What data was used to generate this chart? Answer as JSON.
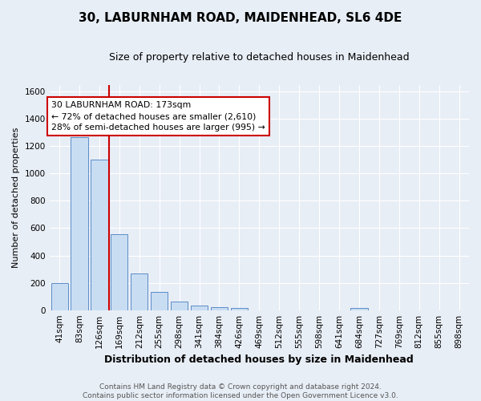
{
  "title": "30, LABURNHAM ROAD, MAIDENHEAD, SL6 4DE",
  "subtitle": "Size of property relative to detached houses in Maidenhead",
  "xlabel": "Distribution of detached houses by size in Maidenhead",
  "ylabel": "Number of detached properties",
  "footer_line1": "Contains HM Land Registry data © Crown copyright and database right 2024.",
  "footer_line2": "Contains public sector information licensed under the Open Government Licence v3.0.",
  "bar_labels": [
    "41sqm",
    "83sqm",
    "126sqm",
    "169sqm",
    "212sqm",
    "255sqm",
    "298sqm",
    "341sqm",
    "384sqm",
    "426sqm",
    "469sqm",
    "512sqm",
    "555sqm",
    "598sqm",
    "641sqm",
    "684sqm",
    "727sqm",
    "769sqm",
    "812sqm",
    "855sqm",
    "898sqm"
  ],
  "bar_values": [
    197,
    1265,
    1100,
    553,
    270,
    134,
    63,
    35,
    20,
    13,
    0,
    0,
    0,
    0,
    0,
    15,
    0,
    0,
    0,
    0,
    0
  ],
  "bar_color": "#c9ddf2",
  "bar_edge_color": "#5b8cc8",
  "annotation_title": "30 LABURNHAM ROAD: 173sqm",
  "annotation_line1": "← 72% of detached houses are smaller (2,610)",
  "annotation_line2": "28% of semi-detached houses are larger (995) →",
  "property_line_color": "#cc0000",
  "ylim": [
    0,
    1650
  ],
  "yticks": [
    0,
    200,
    400,
    600,
    800,
    1000,
    1200,
    1400,
    1600
  ],
  "annotation_box_color": "#ffffff",
  "annotation_box_edge_color": "#cc0000",
  "background_color": "#e8eef6",
  "plot_background_color": "#e8eef6",
  "grid_color": "#ffffff",
  "title_fontsize": 11,
  "subtitle_fontsize": 9,
  "ylabel_fontsize": 8,
  "xlabel_fontsize": 9,
  "tick_fontsize": 7.5,
  "footer_fontsize": 6.5,
  "annotation_fontsize": 7.8
}
